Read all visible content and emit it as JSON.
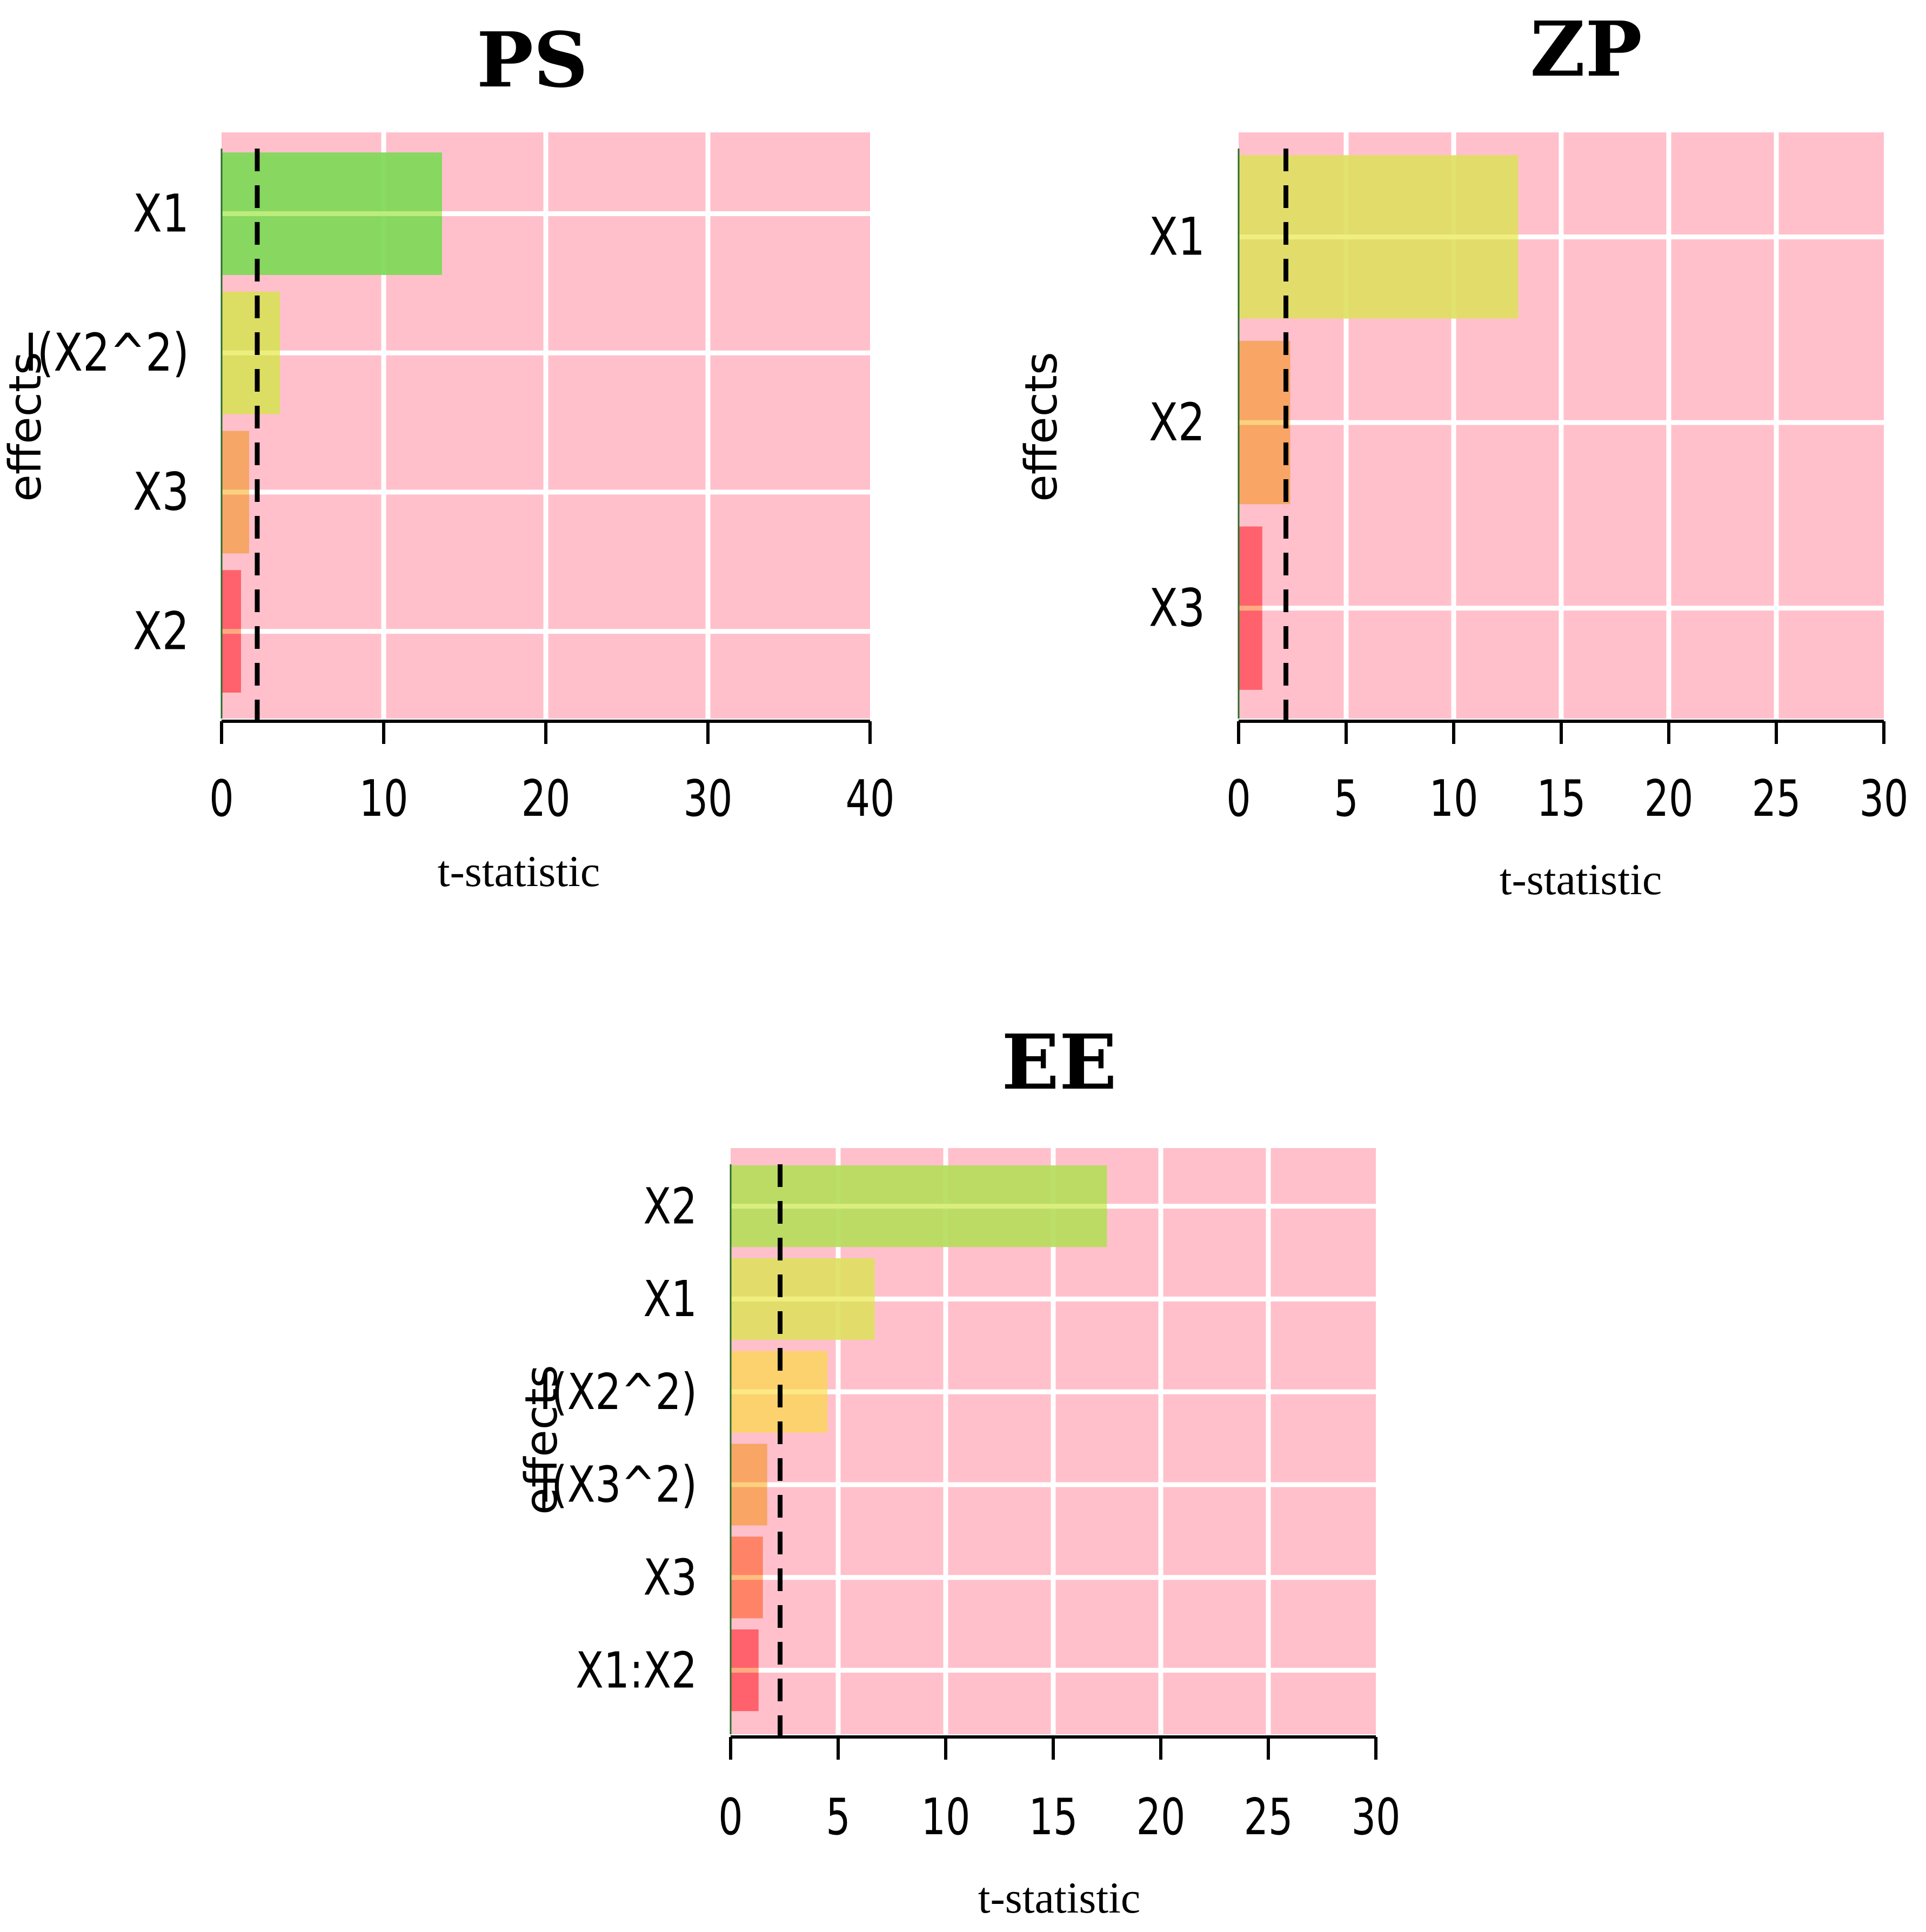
{
  "chart_data": [
    {
      "type": "bar",
      "orientation": "horizontal",
      "title": "PS",
      "xlabel": "t-statistic",
      "ylabel": "effects",
      "categories": [
        "X1",
        "I(X2^2)",
        "X3",
        "X2"
      ],
      "values": [
        13.6,
        3.6,
        1.7,
        1.2
      ],
      "bar_colors": [
        "#7ed957",
        "#d9e05a",
        "#f5a55e",
        "#ff5a64"
      ],
      "xlim": [
        0,
        40
      ],
      "xticks": [
        0,
        10,
        20,
        30,
        40
      ],
      "xtick_labels": [
        "0",
        "10",
        "20",
        "30",
        "40"
      ],
      "reference_line": 2.2,
      "background": "#ffc0cb",
      "grid": true
    },
    {
      "type": "bar",
      "orientation": "horizontal",
      "title": "ZP",
      "xlabel": "t-statistic",
      "ylabel": "effects",
      "categories": [
        "X1",
        "X2",
        "X3"
      ],
      "values": [
        13.0,
        2.4,
        1.1
      ],
      "bar_colors": [
        "#dfe062",
        "#f7a35c",
        "#ff5a64"
      ],
      "xlim": [
        0,
        30
      ],
      "xticks": [
        0,
        5,
        10,
        15,
        20,
        25,
        30
      ],
      "xtick_labels": [
        "0",
        "5",
        "10",
        "15",
        "20",
        "25",
        "30"
      ],
      "reference_line": 2.2,
      "background": "#ffc0cb",
      "grid": true
    },
    {
      "type": "bar",
      "orientation": "horizontal",
      "title": "EE",
      "xlabel": "t-statistic",
      "ylabel": "effects",
      "categories": [
        "X2",
        "X1",
        "I(X2^2)",
        "I(X3^2)",
        "X3",
        "X1:X2"
      ],
      "values": [
        17.5,
        6.7,
        4.5,
        1.7,
        1.5,
        1.3
      ],
      "bar_colors": [
        "#b5dd5c",
        "#dfe062",
        "#fbd466",
        "#f7a35c",
        "#ff7f5e",
        "#ff5a64"
      ],
      "xlim": [
        0,
        30
      ],
      "xticks": [
        0,
        5,
        10,
        15,
        20,
        25,
        30
      ],
      "xtick_labels": [
        "0",
        "5",
        "10",
        "15",
        "20",
        "25",
        "30"
      ],
      "reference_line": 2.3,
      "background": "#ffc0cb",
      "grid": true
    }
  ]
}
